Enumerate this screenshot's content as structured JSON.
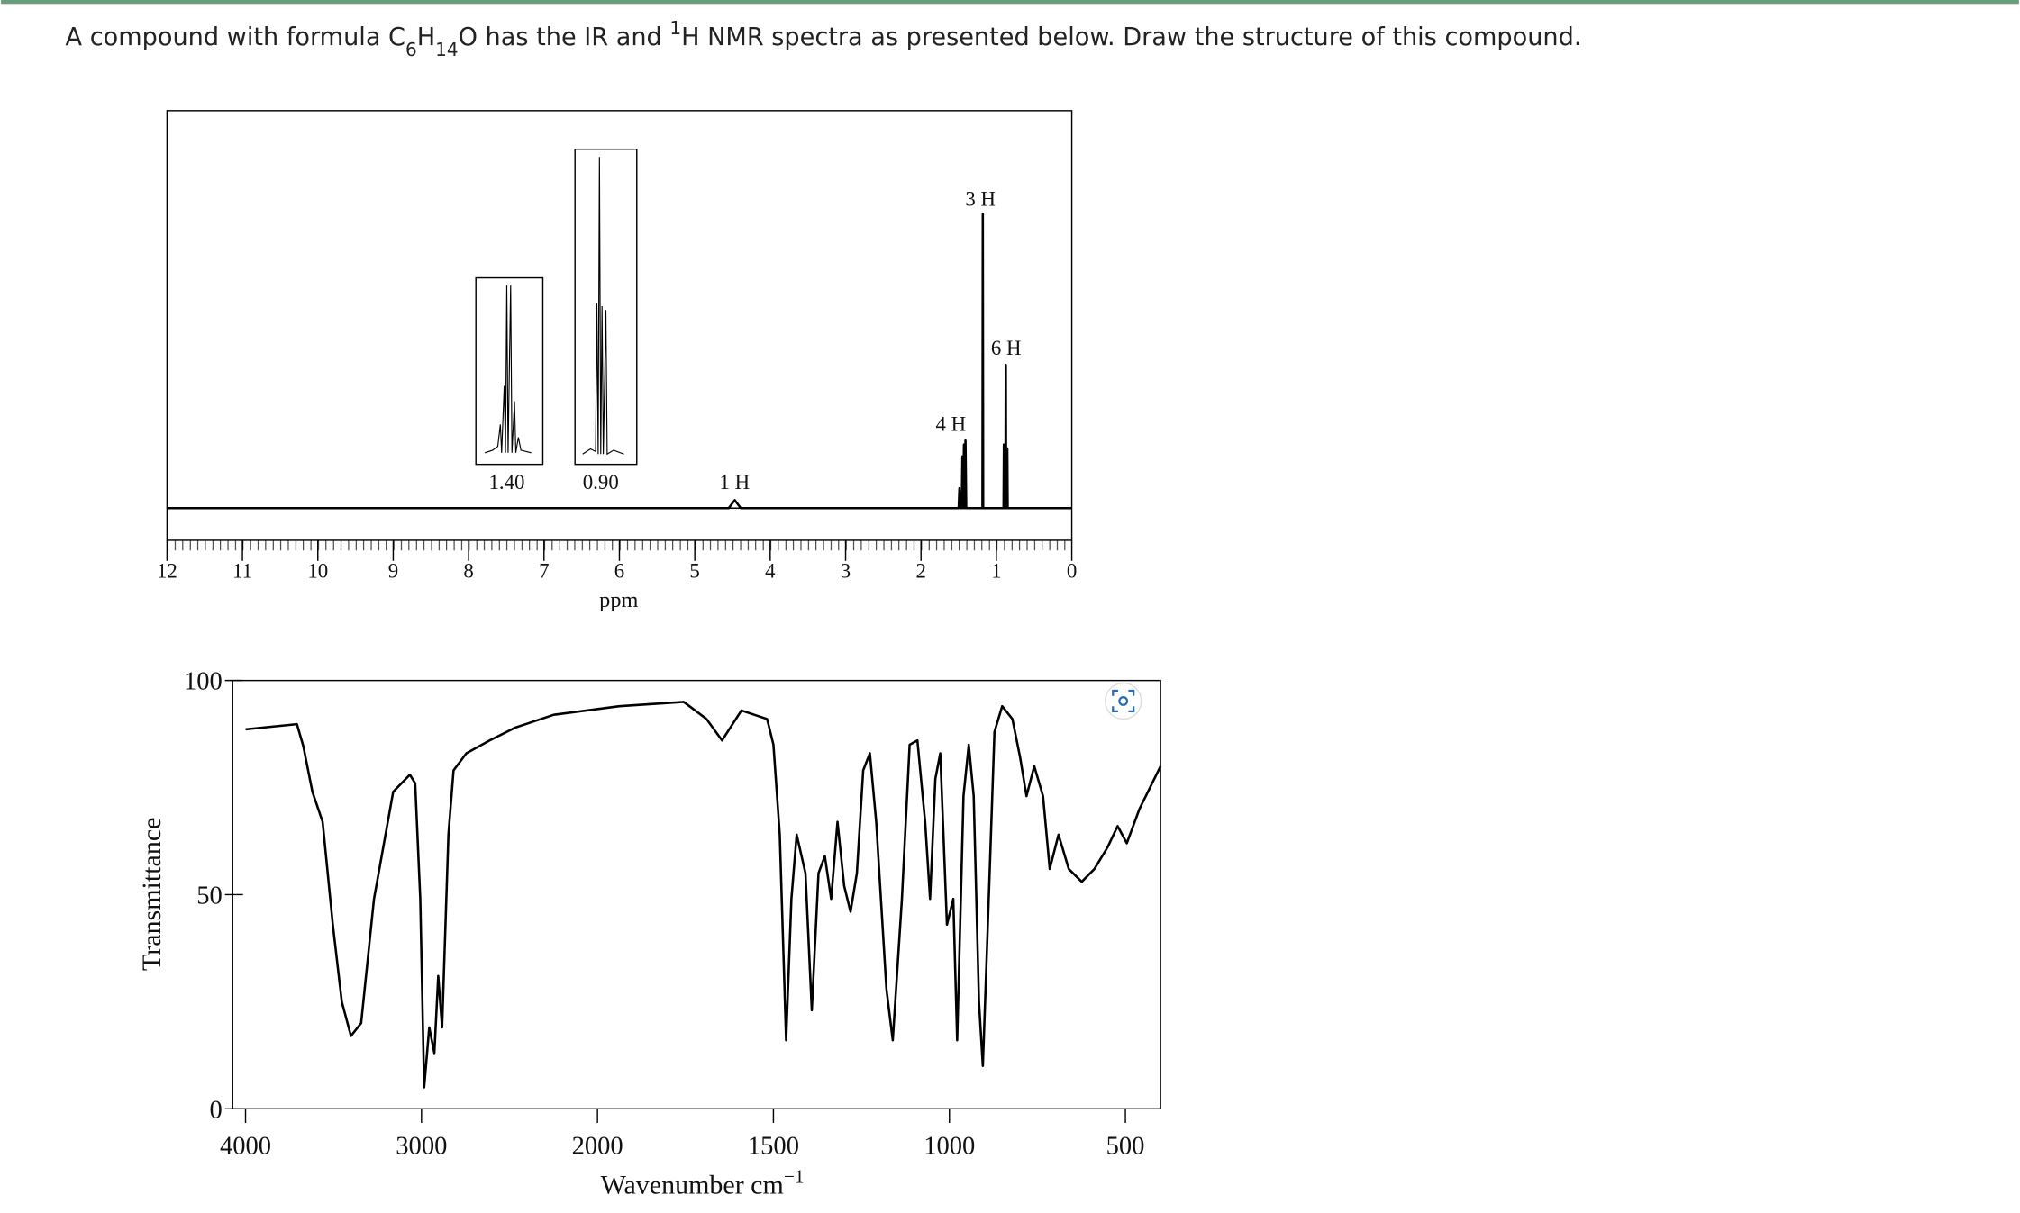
{
  "question": [
    "A compound with formula C",
    "6",
    "H",
    "14",
    "O has the IR and ",
    "1",
    "H NMR spectra as presented below. Draw the structure of this compound."
  ],
  "chart_data": [
    {
      "type": "line",
      "xlabel": "ppm",
      "color": "#000000",
      "xlim": [
        12,
        0
      ],
      "xticks": [
        12,
        11,
        10,
        9,
        8,
        7,
        6,
        5,
        4,
        3,
        2,
        1,
        0
      ],
      "ylim": [
        0,
        100
      ],
      "annotations": [
        "3 H",
        "6 H",
        "4 H",
        "1 H"
      ],
      "insets": [
        {
          "label": "1.40"
        },
        {
          "label": "0.90"
        }
      ],
      "x": [
        12,
        4.55,
        4.47,
        4.39,
        1.5,
        1.49,
        1.48,
        1.46,
        1.45,
        1.44,
        1.43,
        1.42,
        1.41,
        1.4,
        1.185,
        1.18,
        1.175,
        0.905,
        0.9,
        0.895,
        0.88,
        0.875,
        0.87,
        0.86,
        0.855,
        0.85,
        0
      ],
      "values": [
        0,
        0,
        2,
        0,
        0,
        5,
        0,
        0,
        13,
        0,
        16,
        0,
        17,
        0,
        0,
        74,
        0,
        0,
        16,
        0,
        0,
        36,
        0,
        0,
        15,
        0,
        0
      ]
    },
    {
      "type": "line",
      "xlabel": "Wavenumber cm",
      "xlabel_sup": "−1",
      "ylabel": "Transmittance",
      "color": "#000000",
      "xlim": [
        4000,
        400
      ],
      "xticks": [
        4000,
        3000,
        2000,
        1500,
        1000,
        500
      ],
      "ylim": [
        0,
        100
      ],
      "yticks": [
        0,
        50,
        100
      ],
      "x": [
        4000,
        3708,
        3672,
        3620,
        3562,
        3504,
        3453,
        3401,
        3343,
        3270,
        3161,
        3066,
        3036,
        3007,
        2985,
        2956,
        2927,
        2905,
        2883,
        2847,
        2818,
        2745,
        2613,
        2467,
        2248,
        1938,
        1755,
        1690,
        1646,
        1591,
        1518,
        1500,
        1482,
        1464,
        1449,
        1434,
        1409,
        1391,
        1372,
        1354,
        1336,
        1318,
        1299,
        1281,
        1263,
        1245,
        1226,
        1208,
        1179,
        1161,
        1135,
        1113,
        1091,
        1069,
        1055,
        1040,
        1026,
        1007,
        989,
        978,
        960,
        945,
        931,
        916,
        905,
        887,
        872,
        850,
        821,
        799,
        781,
        759,
        734,
        715,
        690,
        661,
        624,
        588,
        551,
        522,
        496,
        460,
        400
      ],
      "values": [
        88.6,
        89.8,
        84.7,
        74,
        67,
        43,
        25,
        17,
        20,
        49,
        74,
        78,
        76,
        49,
        5,
        19,
        13,
        31,
        19,
        64,
        79,
        83,
        86,
        89,
        92,
        94,
        95,
        91,
        86,
        93,
        91,
        85,
        64,
        16,
        49,
        64,
        55,
        23,
        55,
        59,
        49,
        67,
        52,
        46,
        55,
        79,
        83,
        67,
        28,
        16,
        49,
        85,
        86,
        67,
        49,
        77,
        83,
        43,
        49,
        16,
        73,
        85,
        73,
        25,
        10,
        52,
        88,
        94,
        91,
        82,
        73,
        80,
        73,
        56,
        64,
        56,
        53,
        56,
        61,
        66,
        62,
        70,
        80
      ]
    }
  ]
}
